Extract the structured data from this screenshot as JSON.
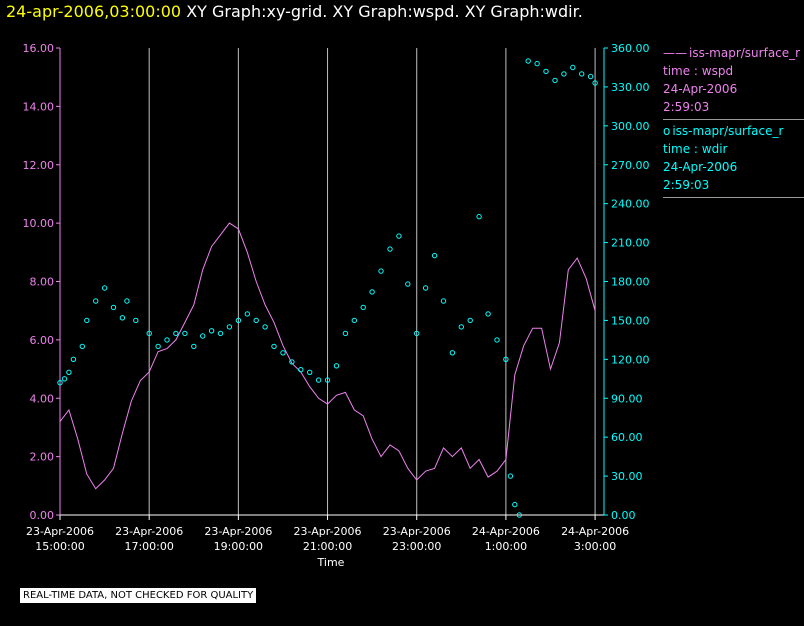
{
  "header": {
    "timestamp": "24-apr-2006,03:00:00",
    "titles": "XY Graph:xy-grid.  XY Graph:wspd.  XY Graph:wdir."
  },
  "colors": {
    "wspd": "#ee82ee",
    "wdir": "#00ffff",
    "grid": "#c0c0c0",
    "axis_left": "#ee82ee",
    "axis_right": "#00ffff",
    "timestamp": "#ffff00"
  },
  "legend": {
    "wspd": {
      "symbol": "——",
      "name": "iss-mapr/surface_r",
      "var": "time : wspd",
      "date": "24-Apr-2006",
      "time": "2:59:03"
    },
    "wdir": {
      "symbol": "o",
      "name": "iss-mapr/surface_r",
      "var": "time : wdir",
      "date": "24-Apr-2006",
      "time": "2:59:03"
    }
  },
  "footer": "REAL-TIME DATA, NOT CHECKED FOR QUALITY",
  "chart_data": {
    "type": "line",
    "xlabel": "Time",
    "x_range_hours": [
      15.0,
      27.2
    ],
    "x_ticks": [
      {
        "h": 15,
        "date": "23-Apr-2006",
        "time": "15:00:00"
      },
      {
        "h": 17,
        "date": "23-Apr-2006",
        "time": "17:00:00"
      },
      {
        "h": 19,
        "date": "23-Apr-2006",
        "time": "19:00:00"
      },
      {
        "h": 21,
        "date": "23-Apr-2006",
        "time": "21:00:00"
      },
      {
        "h": 23,
        "date": "23-Apr-2006",
        "time": "23:00:00"
      },
      {
        "h": 25,
        "date": "24-Apr-2006",
        "time": "1:00:00"
      },
      {
        "h": 27,
        "date": "24-Apr-2006",
        "time": "3:00:00"
      }
    ],
    "grid_vertical_hours": [
      17,
      19,
      21,
      23,
      25,
      27
    ],
    "y_left": {
      "label": "wspd",
      "range": [
        0,
        16
      ],
      "ticks": [
        "0.00",
        "2.00",
        "4.00",
        "6.00",
        "8.00",
        "10.00",
        "12.00",
        "14.00",
        "16.00"
      ]
    },
    "y_right": {
      "label": "wdir",
      "range": [
        0,
        360
      ],
      "ticks": [
        "0.00",
        "30.00",
        "60.00",
        "90.00",
        "120.00",
        "150.00",
        "180.00",
        "210.00",
        "240.00",
        "270.00",
        "300.00",
        "330.00",
        "360.00"
      ]
    },
    "series": [
      {
        "name": "wspd",
        "axis": "left",
        "style": "line",
        "x": [
          15.0,
          15.2,
          15.4,
          15.6,
          15.8,
          16.0,
          16.2,
          16.4,
          16.6,
          16.8,
          17.0,
          17.2,
          17.4,
          17.6,
          17.8,
          18.0,
          18.2,
          18.4,
          18.6,
          18.8,
          19.0,
          19.2,
          19.4,
          19.6,
          19.8,
          20.0,
          20.2,
          20.4,
          20.6,
          20.8,
          21.0,
          21.2,
          21.4,
          21.6,
          21.8,
          22.0,
          22.2,
          22.4,
          22.6,
          22.8,
          23.0,
          23.2,
          23.4,
          23.6,
          23.8,
          24.0,
          24.2,
          24.4,
          24.6,
          24.8,
          25.0,
          25.2,
          25.4,
          25.6,
          25.8,
          26.0,
          26.2,
          26.4,
          26.6,
          26.8,
          27.0
        ],
        "values": [
          3.2,
          3.6,
          2.6,
          1.4,
          0.9,
          1.2,
          1.6,
          2.8,
          3.9,
          4.6,
          4.9,
          5.6,
          5.7,
          6.0,
          6.6,
          7.2,
          8.4,
          9.2,
          9.6,
          10.0,
          9.8,
          9.0,
          8.0,
          7.2,
          6.6,
          5.8,
          5.2,
          4.9,
          4.4,
          4.0,
          3.8,
          4.1,
          4.2,
          3.6,
          3.4,
          2.6,
          2.0,
          2.4,
          2.2,
          1.6,
          1.2,
          1.5,
          1.6,
          2.3,
          2.0,
          2.3,
          1.6,
          1.9,
          1.3,
          1.5,
          1.9,
          4.8,
          5.8,
          6.4,
          6.4,
          5.0,
          5.9,
          8.4,
          8.8,
          8.1,
          7.0
        ]
      },
      {
        "name": "wdir",
        "axis": "right",
        "style": "circles",
        "x": [
          15.0,
          15.1,
          15.2,
          15.3,
          15.5,
          15.6,
          15.8,
          16.0,
          16.2,
          16.4,
          16.5,
          16.7,
          17.0,
          17.2,
          17.4,
          17.6,
          17.8,
          18.0,
          18.2,
          18.4,
          18.6,
          18.8,
          19.0,
          19.2,
          19.4,
          19.6,
          19.8,
          20.0,
          20.2,
          20.4,
          20.6,
          20.8,
          21.0,
          21.2,
          21.4,
          21.6,
          21.8,
          22.0,
          22.2,
          22.4,
          22.6,
          22.8,
          23.0,
          23.2,
          23.4,
          23.6,
          23.8,
          24.0,
          24.2,
          24.4,
          24.6,
          24.8,
          25.0,
          25.1,
          25.2,
          25.3,
          25.5,
          25.7,
          25.9,
          26.1,
          26.3,
          26.5,
          26.7,
          26.9,
          27.0
        ],
        "values": [
          102,
          105,
          110,
          120,
          130,
          150,
          165,
          175,
          160,
          152,
          165,
          150,
          140,
          130,
          135,
          140,
          140,
          130,
          138,
          142,
          140,
          145,
          150,
          155,
          150,
          145,
          130,
          125,
          118,
          112,
          110,
          104,
          104,
          115,
          140,
          150,
          160,
          172,
          188,
          205,
          215,
          178,
          140,
          175,
          200,
          165,
          125,
          145,
          150,
          230,
          155,
          135,
          120,
          30,
          8,
          0,
          350,
          348,
          342,
          335,
          340,
          345,
          340,
          338,
          333
        ]
      }
    ]
  }
}
